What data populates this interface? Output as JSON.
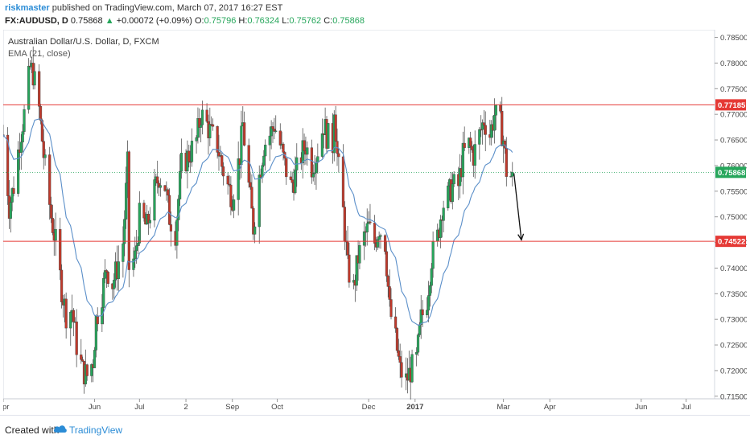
{
  "header": {
    "author": "riskmaster",
    "published_text": "published on TradingView.com, March 07, 2017 16:27 EST",
    "symbol": "FX:AUDUSD, D",
    "last": "0.75868",
    "change_arrow": "▲",
    "change": "+0.00072 (+0.09%)",
    "o_label": "O:",
    "o_value": "0.75796",
    "h_label": "H:",
    "h_value": "0.76324",
    "l_label": "L:",
    "l_value": "0.75762",
    "c_label": "C:",
    "c_value": "0.75868"
  },
  "footer": {
    "created_with": "Created with",
    "brand": "TradingView",
    "logo_icon": "tradingview-cloud-icon"
  },
  "colors": {
    "up": "#26a65b",
    "down": "#c0392b",
    "ema": "#5b8fc9",
    "level": "#e53935",
    "accent": "#2b8cd6"
  },
  "chart_data": {
    "type": "candlestick",
    "title": "Australian Dollar/U.S. Dollar, D, FXCM",
    "indicator": "EMA (21, close)",
    "y_range": [
      0.7145,
      0.7865
    ],
    "y_ticks": [
      "0.71500",
      "0.72000",
      "0.72500",
      "0.73000",
      "0.73500",
      "0.74000",
      "0.74500",
      "0.75000",
      "0.75500",
      "0.76000",
      "0.76500",
      "0.77000",
      "0.77500",
      "0.78000",
      "0.78500"
    ],
    "x_range": [
      "2016-04-01",
      "2017-07-20"
    ],
    "x_ticks": [
      {
        "date": "2016-04-01",
        "label": "Apr"
      },
      {
        "date": "2016-06-01",
        "label": "Jun"
      },
      {
        "date": "2016-07-01",
        "label": "Jul"
      },
      {
        "date": "2016-08-01",
        "label": "2"
      },
      {
        "date": "2016-09-01",
        "label": "Sep"
      },
      {
        "date": "2016-10-01",
        "label": "Oct"
      },
      {
        "date": "2016-12-01",
        "label": "Dec"
      },
      {
        "date": "2017-01-01",
        "label": "2017"
      },
      {
        "date": "2017-03-01",
        "label": "Mar"
      },
      {
        "date": "2017-04-01",
        "label": "Apr"
      },
      {
        "date": "2017-06-01",
        "label": "Jun"
      },
      {
        "date": "2017-07-01",
        "label": "Jul"
      }
    ],
    "horizontal_lines": [
      {
        "value": 0.77185,
        "label": "0.77185",
        "color": "#e53935"
      },
      {
        "value": 0.74522,
        "label": "0.74522",
        "color": "#e53935"
      }
    ],
    "last_price": {
      "value": 0.75868,
      "label": "0.75868",
      "color": "#26a65b"
    },
    "projection_arrow": {
      "from": {
        "date": "2017-03-08",
        "value": 0.7585
      },
      "to": {
        "date": "2017-03-13",
        "value": 0.7455
      }
    },
    "price_path": [
      [
        "2016-04-01",
        0.766
      ],
      [
        "2016-04-05",
        0.752
      ],
      [
        "2016-04-08",
        0.756
      ],
      [
        "2016-04-12",
        0.765
      ],
      [
        "2016-04-15",
        0.77
      ],
      [
        "2016-04-19",
        0.779
      ],
      [
        "2016-04-21",
        0.778
      ],
      [
        "2016-04-25",
        0.771
      ],
      [
        "2016-04-28",
        0.762
      ],
      [
        "2016-05-03",
        0.75
      ],
      [
        "2016-05-06",
        0.745
      ],
      [
        "2016-05-10",
        0.736
      ],
      [
        "2016-05-13",
        0.731
      ],
      [
        "2016-05-17",
        0.732
      ],
      [
        "2016-05-20",
        0.725
      ],
      [
        "2016-05-24",
        0.72
      ],
      [
        "2016-05-27",
        0.719
      ],
      [
        "2016-05-31",
        0.722
      ],
      [
        "2016-06-02",
        0.73
      ],
      [
        "2016-06-06",
        0.735
      ],
      [
        "2016-06-09",
        0.74
      ],
      [
        "2016-06-13",
        0.737
      ],
      [
        "2016-06-16",
        0.74
      ],
      [
        "2016-06-20",
        0.745
      ],
      [
        "2016-06-23",
        0.76
      ],
      [
        "2016-06-24",
        0.74
      ],
      [
        "2016-06-28",
        0.742
      ],
      [
        "2016-07-01",
        0.75
      ],
      [
        "2016-07-06",
        0.748
      ],
      [
        "2016-07-11",
        0.755
      ],
      [
        "2016-07-14",
        0.758
      ],
      [
        "2016-07-18",
        0.756
      ],
      [
        "2016-07-21",
        0.75
      ],
      [
        "2016-07-25",
        0.747
      ],
      [
        "2016-07-29",
        0.76
      ],
      [
        "2016-08-03",
        0.762
      ],
      [
        "2016-08-08",
        0.765
      ],
      [
        "2016-08-11",
        0.77
      ],
      [
        "2016-08-15",
        0.768
      ],
      [
        "2016-08-18",
        0.766
      ],
      [
        "2016-08-22",
        0.764
      ],
      [
        "2016-08-25",
        0.76
      ],
      [
        "2016-08-29",
        0.756
      ],
      [
        "2016-09-01",
        0.754
      ],
      [
        "2016-09-06",
        0.762
      ],
      [
        "2016-09-08",
        0.768
      ],
      [
        "2016-09-12",
        0.756
      ],
      [
        "2016-09-15",
        0.748
      ],
      [
        "2016-09-19",
        0.758
      ],
      [
        "2016-09-22",
        0.764
      ],
      [
        "2016-09-26",
        0.766
      ],
      [
        "2016-09-29",
        0.768
      ],
      [
        "2016-10-03",
        0.764
      ],
      [
        "2016-10-06",
        0.76
      ],
      [
        "2016-10-10",
        0.756
      ],
      [
        "2016-10-13",
        0.758
      ],
      [
        "2016-10-17",
        0.762
      ],
      [
        "2016-10-20",
        0.764
      ],
      [
        "2016-10-24",
        0.76
      ],
      [
        "2016-10-27",
        0.762
      ],
      [
        "2016-11-01",
        0.768
      ],
      [
        "2016-11-03",
        0.766
      ],
      [
        "2016-11-07",
        0.764
      ],
      [
        "2016-11-08",
        0.772
      ],
      [
        "2016-11-10",
        0.762
      ],
      [
        "2016-11-14",
        0.751
      ],
      [
        "2016-11-17",
        0.74
      ],
      [
        "2016-11-21",
        0.736
      ],
      [
        "2016-11-24",
        0.742
      ],
      [
        "2016-11-28",
        0.746
      ],
      [
        "2016-12-01",
        0.748
      ],
      [
        "2016-12-05",
        0.745
      ],
      [
        "2016-12-08",
        0.748
      ],
      [
        "2016-12-12",
        0.745
      ],
      [
        "2016-12-15",
        0.732
      ],
      [
        "2016-12-19",
        0.726
      ],
      [
        "2016-12-22",
        0.72
      ],
      [
        "2016-12-26",
        0.718
      ],
      [
        "2016-12-29",
        0.72
      ],
      [
        "2017-01-02",
        0.722
      ],
      [
        "2017-01-05",
        0.73
      ],
      [
        "2017-01-09",
        0.734
      ],
      [
        "2017-01-12",
        0.742
      ],
      [
        "2017-01-16",
        0.746
      ],
      [
        "2017-01-19",
        0.752
      ],
      [
        "2017-01-23",
        0.754
      ],
      [
        "2017-01-26",
        0.756
      ],
      [
        "2017-01-30",
        0.756
      ],
      [
        "2017-02-02",
        0.762
      ],
      [
        "2017-02-06",
        0.764
      ],
      [
        "2017-02-09",
        0.762
      ],
      [
        "2017-02-13",
        0.766
      ],
      [
        "2017-02-16",
        0.769
      ],
      [
        "2017-02-20",
        0.766
      ],
      [
        "2017-02-23",
        0.77
      ],
      [
        "2017-02-27",
        0.768
      ],
      [
        "2017-03-01",
        0.765
      ],
      [
        "2017-03-03",
        0.759
      ],
      [
        "2017-03-06",
        0.758
      ],
      [
        "2017-03-07",
        0.7587
      ]
    ]
  }
}
